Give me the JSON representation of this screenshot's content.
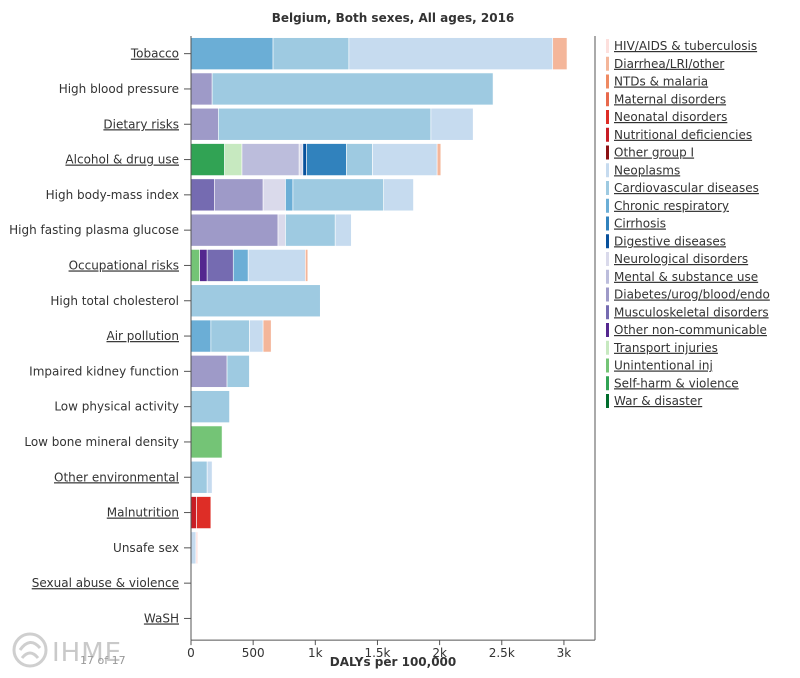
{
  "chart_data": {
    "type": "bar",
    "orientation": "horizontal",
    "stacked": true,
    "title": "Belgium, Both sexes, All ages, 2016",
    "xlabel": "DALYs per 100,000",
    "xlim": [
      0,
      3250
    ],
    "xticks": [
      0,
      500,
      1000,
      1500,
      2000,
      2500,
      3000
    ],
    "xtick_labels": [
      "0",
      "500",
      "1k",
      "1.5k",
      "2k",
      "2.5k",
      "3k"
    ],
    "legend_position": "right",
    "categories": [
      {
        "label": "Tobacco",
        "link": true
      },
      {
        "label": "High blood pressure",
        "link": false
      },
      {
        "label": "Dietary risks",
        "link": true
      },
      {
        "label": "Alcohol & drug use",
        "link": true
      },
      {
        "label": "High body-mass index",
        "link": false
      },
      {
        "label": "High fasting plasma glucose",
        "link": false
      },
      {
        "label": "Occupational risks",
        "link": true
      },
      {
        "label": "High total cholesterol",
        "link": false
      },
      {
        "label": "Air pollution",
        "link": true
      },
      {
        "label": "Impaired kidney function",
        "link": false
      },
      {
        "label": "Low physical activity",
        "link": false
      },
      {
        "label": "Low bone mineral density",
        "link": false
      },
      {
        "label": "Other environmental",
        "link": true
      },
      {
        "label": "Malnutrition",
        "link": true
      },
      {
        "label": "Unsafe sex",
        "link": false
      },
      {
        "label": "Sexual abuse & violence",
        "link": true
      },
      {
        "label": "WaSH",
        "link": true
      }
    ],
    "series": [
      {
        "name": "HIV/AIDS & tuberculosis",
        "color": "#fde0dd",
        "values": [
          0,
          0,
          0,
          0,
          0,
          0,
          0,
          0,
          0,
          0,
          0,
          0,
          0,
          0,
          15,
          0,
          0
        ]
      },
      {
        "name": "Diarrhea/LRI/other",
        "color": "#f4b69a",
        "values": [
          115,
          0,
          0,
          30,
          0,
          0,
          20,
          0,
          65,
          0,
          0,
          0,
          0,
          0,
          0,
          0,
          0
        ]
      },
      {
        "name": "NTDs & malaria",
        "color": "#ef8a62",
        "values": [
          0,
          0,
          0,
          0,
          0,
          0,
          0,
          0,
          0,
          0,
          0,
          0,
          0,
          0,
          0,
          0,
          0
        ]
      },
      {
        "name": "Maternal disorders",
        "color": "#e8694c",
        "values": [
          0,
          0,
          0,
          0,
          0,
          0,
          0,
          0,
          0,
          0,
          0,
          0,
          0,
          0,
          0,
          0,
          0
        ]
      },
      {
        "name": "Neonatal disorders",
        "color": "#de2d26",
        "values": [
          0,
          0,
          0,
          0,
          0,
          0,
          0,
          0,
          0,
          0,
          0,
          0,
          0,
          115,
          0,
          0,
          0
        ]
      },
      {
        "name": "Nutritional deficiencies",
        "color": "#c81d25",
        "values": [
          0,
          0,
          0,
          0,
          0,
          0,
          0,
          0,
          0,
          0,
          0,
          0,
          0,
          45,
          0,
          0,
          0
        ]
      },
      {
        "name": "Other group I",
        "color": "#8b1113",
        "values": [
          0,
          0,
          0,
          0,
          0,
          0,
          0,
          0,
          0,
          0,
          0,
          0,
          0,
          0,
          0,
          0,
          0
        ]
      },
      {
        "name": "Neoplasms",
        "color": "#c6dbef",
        "values": [
          1640,
          0,
          340,
          520,
          240,
          130,
          460,
          0,
          110,
          0,
          0,
          0,
          40,
          0,
          40,
          0,
          0
        ]
      },
      {
        "name": "Cardiovascular diseases",
        "color": "#9ecae1",
        "values": [
          610,
          2260,
          1710,
          210,
          730,
          400,
          0,
          1040,
          310,
          180,
          310,
          0,
          130,
          0,
          0,
          0,
          0
        ]
      },
      {
        "name": "Chronic respiratory",
        "color": "#6baed6",
        "values": [
          660,
          0,
          0,
          0,
          60,
          0,
          120,
          0,
          160,
          0,
          0,
          0,
          0,
          0,
          0,
          0,
          0
        ]
      },
      {
        "name": "Cirrhosis",
        "color": "#3182bd",
        "values": [
          0,
          0,
          0,
          320,
          0,
          0,
          0,
          0,
          0,
          0,
          0,
          0,
          0,
          0,
          0,
          0,
          0
        ]
      },
      {
        "name": "Digestive diseases",
        "color": "#08519c",
        "values": [
          0,
          0,
          0,
          30,
          0,
          0,
          0,
          0,
          0,
          0,
          0,
          0,
          0,
          0,
          0,
          0,
          0
        ]
      },
      {
        "name": "Neurological disorders",
        "color": "#dadaeb",
        "values": [
          0,
          0,
          0,
          30,
          180,
          60,
          0,
          0,
          0,
          0,
          0,
          0,
          0,
          0,
          0,
          0,
          0
        ]
      },
      {
        "name": "Mental & substance use",
        "color": "#bcbddc",
        "values": [
          0,
          0,
          0,
          460,
          0,
          0,
          0,
          0,
          0,
          0,
          0,
          0,
          0,
          0,
          0,
          0,
          0
        ]
      },
      {
        "name": "Diabetes/urog/blood/endo",
        "color": "#9e9ac8",
        "values": [
          0,
          170,
          220,
          0,
          390,
          700,
          0,
          0,
          0,
          290,
          0,
          0,
          0,
          0,
          0,
          0,
          0
        ]
      },
      {
        "name": "Musculoskeletal disorders",
        "color": "#756bb1",
        "values": [
          0,
          0,
          0,
          0,
          190,
          0,
          210,
          0,
          0,
          0,
          0,
          0,
          0,
          0,
          0,
          0,
          0
        ]
      },
      {
        "name": "Other non-communicable",
        "color": "#54278f",
        "values": [
          0,
          0,
          0,
          0,
          0,
          0,
          60,
          0,
          0,
          0,
          0,
          0,
          0,
          0,
          0,
          0,
          0
        ]
      },
      {
        "name": "Transport injuries",
        "color": "#c7e9c0",
        "values": [
          0,
          0,
          0,
          140,
          0,
          0,
          0,
          0,
          0,
          0,
          0,
          0,
          0,
          0,
          0,
          0,
          0
        ]
      },
      {
        "name": "Unintentional inj",
        "color": "#74c476",
        "values": [
          0,
          0,
          0,
          0,
          0,
          0,
          70,
          0,
          0,
          0,
          0,
          250,
          0,
          0,
          0,
          0,
          0
        ]
      },
      {
        "name": "Self-harm & violence",
        "color": "#31a354",
        "values": [
          0,
          0,
          0,
          270,
          0,
          0,
          0,
          0,
          0,
          0,
          0,
          0,
          0,
          0,
          0,
          0,
          0
        ]
      },
      {
        "name": "War & disaster",
        "color": "#006d2c",
        "values": [
          0,
          0,
          0,
          0,
          0,
          0,
          0,
          0,
          0,
          0,
          0,
          0,
          0,
          0,
          0,
          0,
          0
        ]
      }
    ]
  },
  "footer": {
    "logo_text": "IHME",
    "pager": "17 of 17"
  }
}
